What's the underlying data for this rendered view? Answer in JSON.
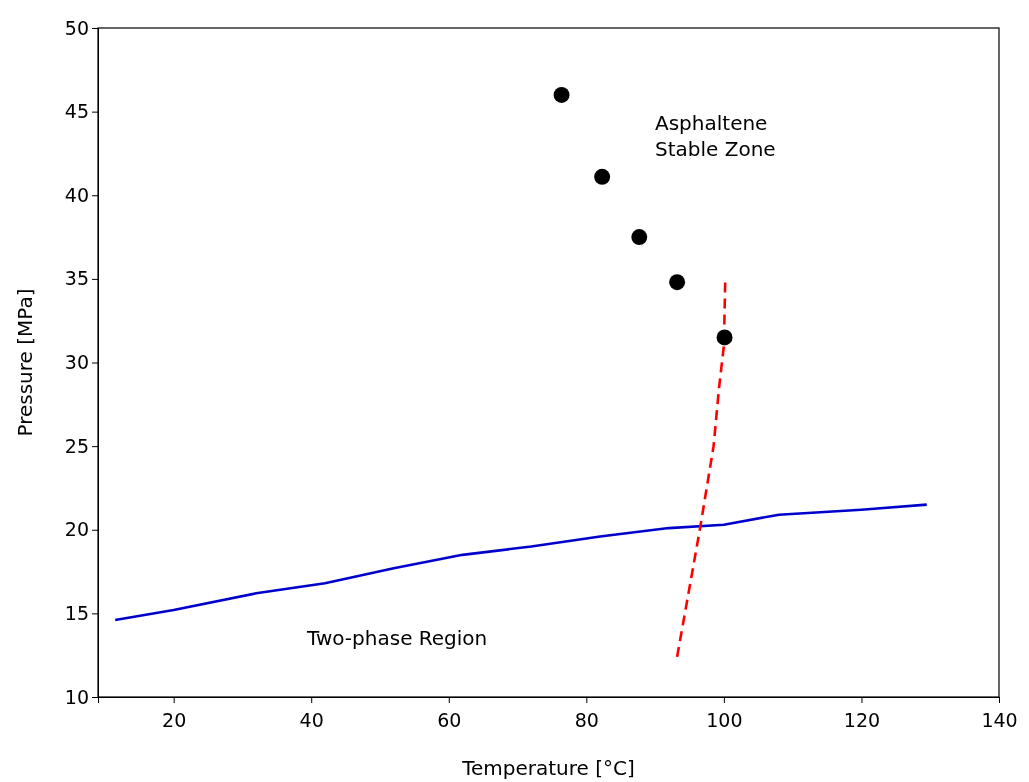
{
  "chart_data": {
    "type": "line",
    "xlabel": "Temperature [°C]",
    "ylabel": "Pressure [MPa]",
    "xlim": [
      9,
      140
    ],
    "ylim": [
      10,
      50
    ],
    "xticks": [
      20,
      40,
      60,
      80,
      100,
      120,
      140
    ],
    "yticks": [
      10,
      15,
      20,
      25,
      30,
      35,
      40,
      45,
      50
    ],
    "grid": false,
    "series": [
      {
        "color": "#0000cc",
        "line_style": "solid",
        "x": [
          11.5,
          20,
          32,
          42,
          52,
          62,
          72,
          82,
          92,
          100,
          108,
          120,
          129.5
        ],
        "values": [
          14.6,
          15.2,
          16.2,
          16.8,
          17.7,
          18.5,
          19,
          19.6,
          20.1,
          20.3,
          20.9,
          21.2,
          21.5
        ]
      },
      {
        "type": "line",
        "color": "#ff0000",
        "line_style": "dashed",
        "x": [
          93.2,
          96.5,
          98.5,
          99.3,
          100,
          100.2
        ],
        "values": [
          12.4,
          20,
          25,
          28.5,
          31,
          35
        ]
      },
      {
        "type": "scatter",
        "color": "#000000",
        "marker": "circle",
        "x": [
          76.4,
          82.3,
          87.7,
          93.2,
          100.1
        ],
        "values": [
          46,
          41.1,
          37.5,
          34.8,
          31.5
        ]
      }
    ],
    "annotations": [
      "Asphaltene\nStable Zone",
      "Two-phase Region"
    ]
  }
}
